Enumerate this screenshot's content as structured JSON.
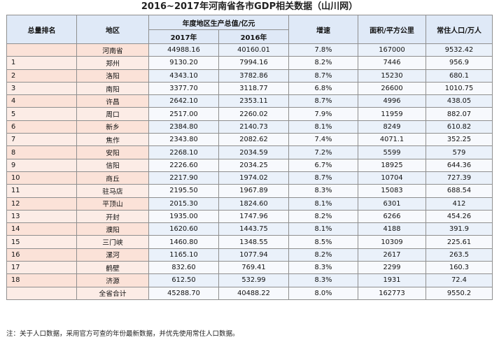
{
  "title": "2016~2017年河南省各市GDP相关数据（山川网）",
  "watermark": "山川网",
  "headers": {
    "rank": "总量排名",
    "region": "地区",
    "gdp_group": "年度地区生产总值/亿元",
    "y2017": "2017年",
    "y2016": "2016年",
    "growth": "增速",
    "area": "面积/平方公里",
    "population": "常住人口/万人"
  },
  "rows": [
    {
      "rank": "",
      "region": "河南省",
      "gdp2017": "44988.16",
      "gdp2016": "40160.01",
      "growth": "7.8%",
      "area": "167000",
      "population": "9532.42"
    },
    {
      "rank": "1",
      "region": "郑州",
      "gdp2017": "9130.20",
      "gdp2016": "7994.16",
      "growth": "8.2%",
      "area": "7446",
      "population": "956.9"
    },
    {
      "rank": "2",
      "region": "洛阳",
      "gdp2017": "4343.10",
      "gdp2016": "3782.86",
      "growth": "8.7%",
      "area": "15230",
      "population": "680.1"
    },
    {
      "rank": "3",
      "region": "南阳",
      "gdp2017": "3377.70",
      "gdp2016": "3118.77",
      "growth": "6.8%",
      "area": "26600",
      "population": "1010.75"
    },
    {
      "rank": "4",
      "region": "许昌",
      "gdp2017": "2642.10",
      "gdp2016": "2353.11",
      "growth": "8.7%",
      "area": "4996",
      "population": "438.05"
    },
    {
      "rank": "5",
      "region": "周口",
      "gdp2017": "2517.00",
      "gdp2016": "2260.02",
      "growth": "7.9%",
      "area": "11959",
      "population": "882.07"
    },
    {
      "rank": "6",
      "region": "新乡",
      "gdp2017": "2384.80",
      "gdp2016": "2140.73",
      "growth": "8.1%",
      "area": "8249",
      "population": "610.82"
    },
    {
      "rank": "7",
      "region": "焦作",
      "gdp2017": "2343.80",
      "gdp2016": "2082.62",
      "growth": "7.4%",
      "area": "4071.1",
      "population": "352.25"
    },
    {
      "rank": "8",
      "region": "安阳",
      "gdp2017": "2268.10",
      "gdp2016": "2034.59",
      "growth": "7.2%",
      "area": "5599",
      "population": "579"
    },
    {
      "rank": "9",
      "region": "信阳",
      "gdp2017": "2226.60",
      "gdp2016": "2034.25",
      "growth": "6.7%",
      "area": "18925",
      "population": "644.36"
    },
    {
      "rank": "10",
      "region": "商丘",
      "gdp2017": "2217.90",
      "gdp2016": "1974.02",
      "growth": "8.7%",
      "area": "10704",
      "population": "727.39"
    },
    {
      "rank": "11",
      "region": "驻马店",
      "gdp2017": "2195.50",
      "gdp2016": "1967.89",
      "growth": "8.3%",
      "area": "15083",
      "population": "688.54"
    },
    {
      "rank": "12",
      "region": "平顶山",
      "gdp2017": "2015.30",
      "gdp2016": "1824.60",
      "growth": "8.1%",
      "area": "6301",
      "population": "412"
    },
    {
      "rank": "13",
      "region": "开封",
      "gdp2017": "1935.00",
      "gdp2016": "1747.96",
      "growth": "8.2%",
      "area": "6266",
      "population": "454.26"
    },
    {
      "rank": "14",
      "region": "濮阳",
      "gdp2017": "1620.60",
      "gdp2016": "1443.75",
      "growth": "8.1%",
      "area": "4188",
      "population": "391.9"
    },
    {
      "rank": "15",
      "region": "三门峡",
      "gdp2017": "1460.80",
      "gdp2016": "1348.55",
      "growth": "8.5%",
      "area": "10309",
      "population": "225.61"
    },
    {
      "rank": "16",
      "region": "漯河",
      "gdp2017": "1165.10",
      "gdp2016": "1077.94",
      "growth": "8.2%",
      "area": "2617",
      "population": "263.5"
    },
    {
      "rank": "17",
      "region": "鹤壁",
      "gdp2017": "832.60",
      "gdp2016": "769.41",
      "growth": "8.3%",
      "area": "2299",
      "population": "160.3"
    },
    {
      "rank": "18",
      "region": "济源",
      "gdp2017": "612.50",
      "gdp2016": "532.99",
      "growth": "8.3%",
      "area": "1931",
      "population": "72.4"
    },
    {
      "rank": "",
      "region": "全省合计",
      "gdp2017": "45288.70",
      "gdp2016": "40488.22",
      "growth": "8.0%",
      "area": "162773",
      "population": "9550.2"
    }
  ],
  "note": "注：关于人口数据，采用官方可查的年份最新数据，并优先使用常住人口数据。"
}
